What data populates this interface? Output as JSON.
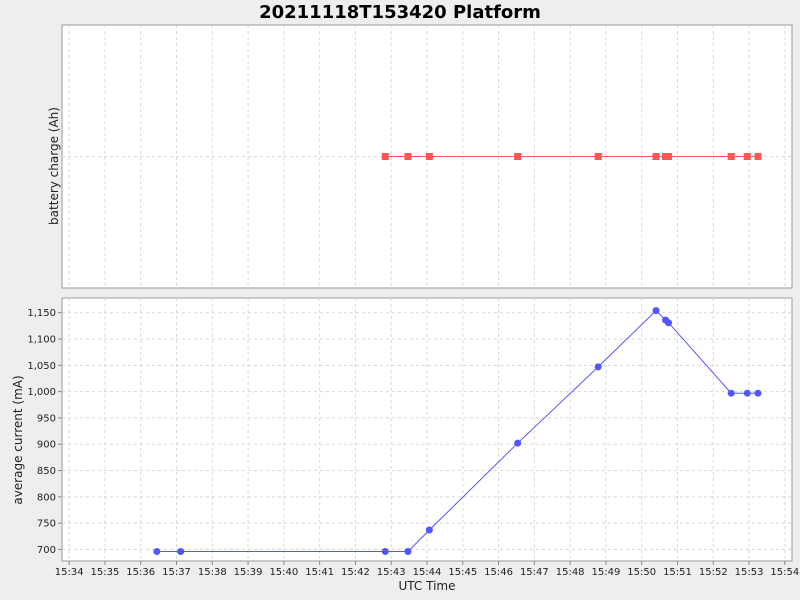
{
  "chart_data": {
    "title": "20211118T153420 Platform",
    "xlabel": "UTC Time",
    "x_ticks": [
      "15:34",
      "15:35",
      "15:36",
      "15:37",
      "15:38",
      "15:39",
      "15:40",
      "15:41",
      "15:42",
      "15:43",
      "15:44",
      "15:45",
      "15:46",
      "15:47",
      "15:48",
      "15:49",
      "15:50",
      "15:51",
      "15:52",
      "15:53",
      "15:54"
    ],
    "x_range_minutes": [
      33.8,
      54.2
    ],
    "panels": [
      {
        "type": "line",
        "ylabel": "battery charge (Ah)",
        "grid": true,
        "y_ticks": [],
        "series": [
          {
            "color": "#ff5555",
            "marker": "square",
            "x": [
              "15:42:50",
              "15:43:28",
              "15:44:04",
              "15:46:32",
              "15:48:47",
              "15:50:24",
              "15:50:40",
              "15:50:45",
              "15:52:30",
              "15:52:57",
              "15:53:15"
            ],
            "y": [
              0,
              0,
              0,
              0,
              0,
              0,
              0,
              0,
              0,
              0,
              0
            ]
          }
        ]
      },
      {
        "type": "line",
        "ylabel": "average current (mA)",
        "grid": true,
        "ylim": [
          678,
          1178
        ],
        "y_ticks": [
          700,
          750,
          800,
          850,
          900,
          950,
          1000,
          1050,
          1100,
          1150
        ],
        "y_tick_labels": [
          "700",
          "750",
          "800",
          "850",
          "900",
          "950",
          "1,000",
          "1,050",
          "1,100",
          "1,150"
        ],
        "series": [
          {
            "color": "#5555ff",
            "marker": "circle",
            "x": [
              "15:36:27",
              "15:37:07",
              "15:42:50",
              "15:43:28",
              "15:44:04",
              "15:46:32",
              "15:48:47",
              "15:50:24",
              "15:50:40",
              "15:50:45",
              "15:52:30",
              "15:52:57",
              "15:53:15"
            ],
            "y": [
              696,
              696,
              696,
              696,
              737,
              902,
              1047,
              1154,
              1136,
              1131,
              997,
              997,
              997
            ]
          }
        ]
      }
    ]
  }
}
